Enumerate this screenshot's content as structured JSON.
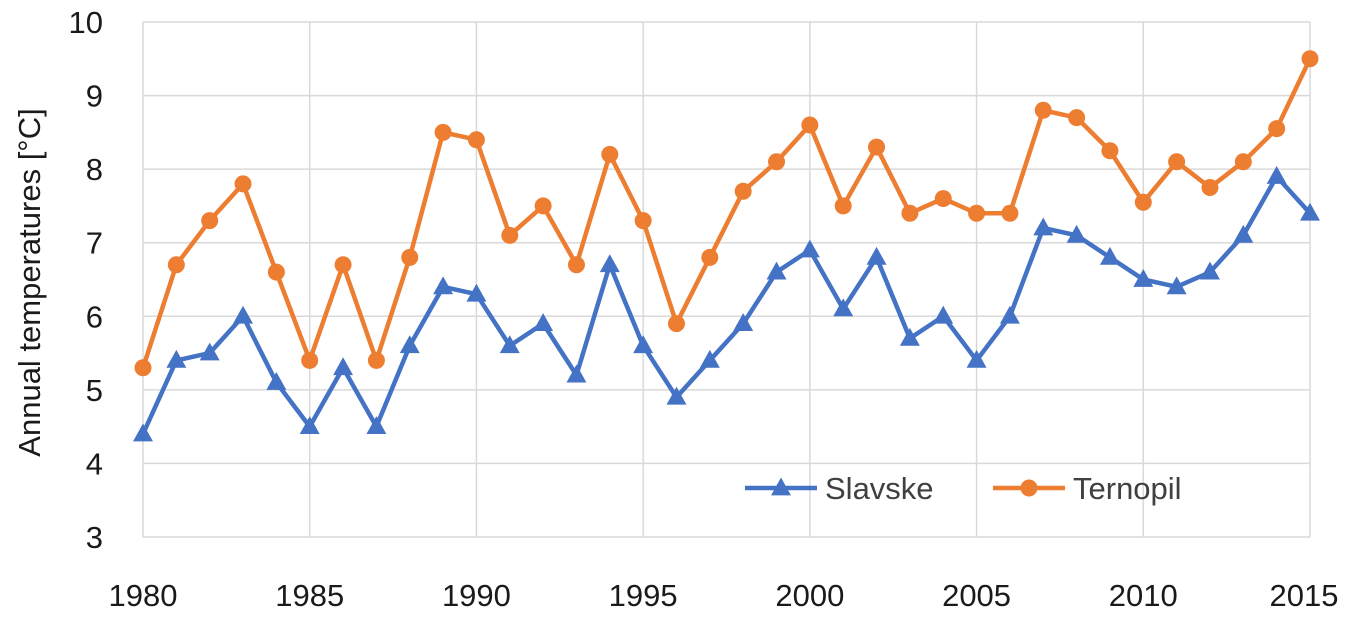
{
  "chart_data": {
    "type": "line",
    "ylabel": "Annual temperatures [°C]",
    "xlim": [
      1980,
      2015
    ],
    "ylim": [
      3,
      10
    ],
    "x_ticks": [
      "1980",
      "1985",
      "1990",
      "1995",
      "2000",
      "2005",
      "2010",
      "2015"
    ],
    "y_ticks": [
      "3",
      "4",
      "5",
      "6",
      "7",
      "8",
      "9",
      "10"
    ],
    "grid": true,
    "legend_position": "bottom-right",
    "x": [
      1980,
      1981,
      1982,
      1983,
      1984,
      1985,
      1986,
      1987,
      1988,
      1989,
      1990,
      1991,
      1992,
      1993,
      1994,
      1995,
      1996,
      1997,
      1998,
      1999,
      2000,
      2001,
      2002,
      2003,
      2004,
      2005,
      2006,
      2007,
      2008,
      2009,
      2010,
      2011,
      2012,
      2013,
      2014,
      2015
    ],
    "series": [
      {
        "name": "Slavske",
        "color": "#4472C4",
        "marker": "triangle",
        "values": [
          4.4,
          5.4,
          5.5,
          6.0,
          5.1,
          4.5,
          5.3,
          4.5,
          5.6,
          6.4,
          6.3,
          5.6,
          5.9,
          5.2,
          6.7,
          5.6,
          4.9,
          5.4,
          5.9,
          6.6,
          6.9,
          6.1,
          6.8,
          5.7,
          6.0,
          5.4,
          6.0,
          7.2,
          7.1,
          6.8,
          6.5,
          6.4,
          6.6,
          7.1,
          7.9,
          7.4
        ]
      },
      {
        "name": "Ternopil",
        "color": "#ED7D31",
        "marker": "circle",
        "values": [
          5.3,
          6.7,
          7.3,
          7.8,
          6.6,
          5.4,
          6.7,
          5.4,
          6.8,
          8.5,
          8.4,
          7.1,
          7.5,
          6.7,
          8.2,
          7.3,
          5.9,
          6.8,
          7.7,
          8.1,
          8.6,
          7.5,
          8.3,
          7.4,
          7.6,
          7.4,
          7.4,
          8.8,
          8.7,
          8.25,
          7.55,
          8.1,
          7.75,
          8.1,
          8.55,
          9.5
        ]
      }
    ]
  }
}
